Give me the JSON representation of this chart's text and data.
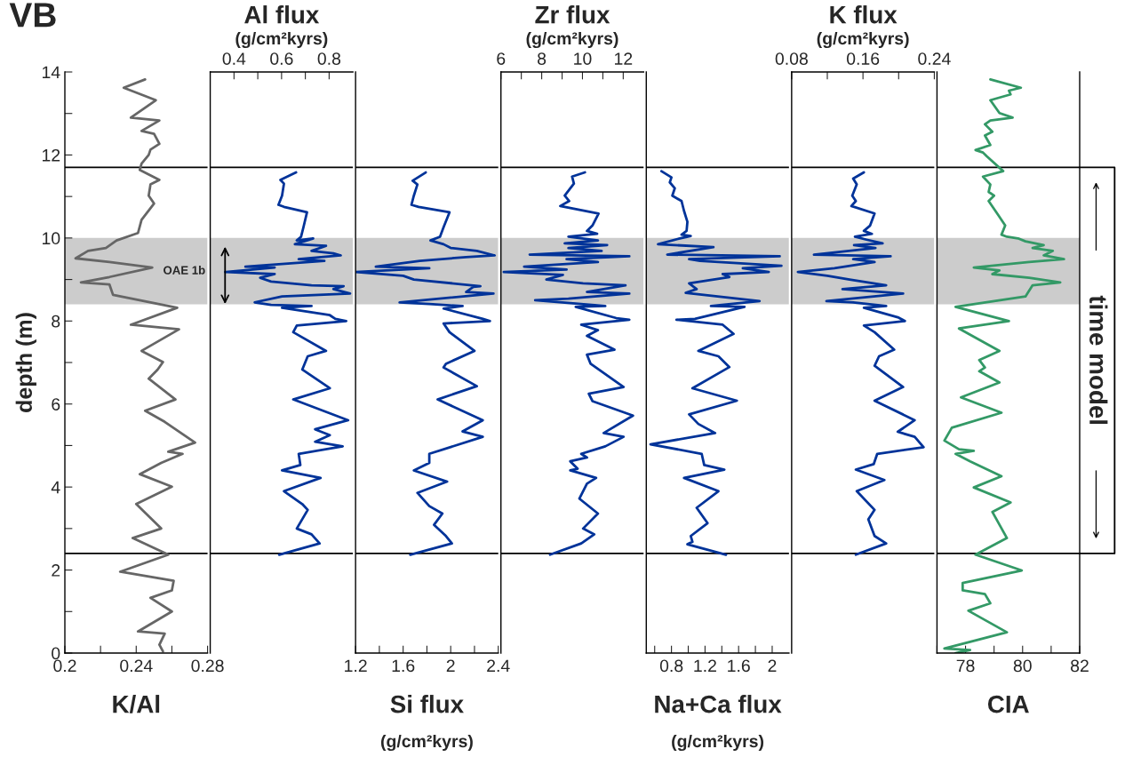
{
  "chart_data": [
    {
      "type": "line",
      "title": "VB",
      "xlabel": "K/Al",
      "ylabel": "depth (m)",
      "color": "#666666",
      "xlim": [
        0.2,
        0.28
      ],
      "xticks": [
        0.2,
        {
          "value": 0.22,
          "label": null
        },
        0.24,
        {
          "value": 0.26,
          "label": null
        },
        0.28
      ],
      "ylim": [
        0,
        14
      ],
      "yticks": [
        0,
        {
          "value": 1,
          "label": null
        },
        2,
        {
          "value": 3,
          "label": null
        },
        4,
        {
          "value": 5,
          "label": null
        },
        6,
        {
          "value": 7,
          "label": null
        },
        8,
        {
          "value": 9,
          "label": null
        },
        10,
        {
          "value": 11,
          "label": null
        },
        12,
        {
          "value": 13,
          "label": null
        },
        14
      ],
      "x": [
        0.245,
        0.233,
        0.251,
        0.237,
        0.253,
        0.243,
        0.25,
        0.253,
        0.248,
        0.247,
        0.243,
        0.242,
        0.253,
        0.248,
        0.247,
        0.25,
        0.243,
        0.241,
        0.229,
        0.223,
        0.213,
        0.206,
        0.225,
        0.249,
        0.225,
        0.209,
        0.225,
        0.227,
        0.263,
        0.237,
        0.264,
        0.243,
        0.255,
        0.252,
        0.247,
        0.262,
        0.245,
        0.256,
        0.273,
        0.258,
        0.266,
        0.254,
        0.242,
        0.26,
        0.24,
        0.254,
        0.238,
        0.258,
        0.231,
        0.261,
        0.26,
        0.248,
        0.26,
        0.241,
        0.256,
        0.253,
        0.255
      ],
      "values": [
        13.82,
        13.62,
        13.32,
        12.9,
        12.83,
        12.58,
        12.51,
        12.27,
        12.13,
        12.0,
        11.79,
        11.64,
        11.4,
        11.29,
        11.02,
        10.83,
        10.44,
        10.12,
        9.94,
        9.76,
        9.69,
        9.51,
        9.42,
        9.29,
        9.06,
        8.93,
        8.88,
        8.63,
        8.32,
        7.91,
        7.8,
        7.28,
        7.01,
        6.83,
        6.61,
        6.11,
        5.84,
        5.57,
        5.07,
        4.85,
        4.8,
        4.58,
        4.31,
        4.01,
        3.59,
        3.0,
        2.77,
        2.37,
        1.96,
        1.74,
        1.51,
        1.33,
        1.0,
        0.52,
        0.47,
        0.2,
        0.04
      ],
      "bands": [
        {
          "axis": "y",
          "from": 8.4,
          "to": 10.0,
          "label": "OAE 1b",
          "color": "#cccccc"
        }
      ],
      "ref_lines": [
        {
          "axis": "y",
          "value": 2.4,
          "color": "#000000"
        },
        {
          "axis": "y",
          "value": 11.7,
          "color": "#000000"
        }
      ]
    },
    {
      "type": "line",
      "xlabel": "Al flux",
      "annotations": [
        "(g/cm²kyrs)"
      ],
      "color": "#003399",
      "tick_labels": "x",
      "xlim": [
        0.3,
        0.9
      ],
      "xticks": [
        0.4,
        {
          "value": 0.5,
          "label": null
        },
        0.6,
        {
          "value": 0.7,
          "label": null
        },
        0.8
      ],
      "ylim": [
        0,
        14
      ],
      "x": [
        0.661,
        0.595,
        0.61,
        0.602,
        0.587,
        0.61,
        0.707,
        0.692,
        0.682,
        0.664,
        0.733,
        0.656,
        0.787,
        0.726,
        0.818,
        0.849,
        0.672,
        0.78,
        0.448,
        0.571,
        0.363,
        0.571,
        0.51,
        0.556,
        0.726,
        0.861,
        0.818,
        0.888,
        0.602,
        0.487,
        0.556,
        0.726,
        0.602,
        0.803,
        0.826,
        0.872,
        0.664,
        0.649,
        0.787,
        0.71,
        0.687,
        0.803,
        0.649,
        0.88,
        0.741,
        0.803,
        0.741,
        0.857,
        0.672,
        0.679,
        0.602,
        0.764,
        0.61,
        0.687,
        0.71,
        0.664,
        0.726,
        0.76,
        0.59
      ],
      "values": [
        11.58,
        11.4,
        11.31,
        11.02,
        10.8,
        10.75,
        10.62,
        10.26,
        10.03,
        9.94,
        9.99,
        9.85,
        9.81,
        9.69,
        9.63,
        9.58,
        9.49,
        9.45,
        9.31,
        9.29,
        9.18,
        9.13,
        9.04,
        8.95,
        8.86,
        8.84,
        8.77,
        8.66,
        8.59,
        8.45,
        8.39,
        8.36,
        8.32,
        8.14,
        8.05,
        8.0,
        7.89,
        7.73,
        7.28,
        7.15,
        6.83,
        6.38,
        6.11,
        5.61,
        5.39,
        5.25,
        5.09,
        4.98,
        4.8,
        4.53,
        4.4,
        4.22,
        3.9,
        3.59,
        3.45,
        3.0,
        2.86,
        2.64,
        2.37
      ],
      "bands": [
        {
          "axis": "y",
          "from": 8.4,
          "to": 10.0,
          "color": "#cccccc"
        }
      ],
      "ref_lines": [
        {
          "axis": "y",
          "value": 2.4,
          "color": "#000000"
        },
        {
          "axis": "y",
          "value": 11.7,
          "color": "#000000"
        }
      ]
    },
    {
      "type": "line",
      "xlabel": "Si flux",
      "annotations": [
        "(g/cm²kyrs)"
      ],
      "color": "#003399",
      "tick_labels": "x",
      "xlim": [
        1.2,
        2.4
      ],
      "xticks": [
        1.2,
        {
          "value": 1.4,
          "label": null
        },
        1.6,
        {
          "value": 1.8,
          "label": null
        },
        2,
        {
          "value": 2.2,
          "label": null
        },
        2.4
      ],
      "ylim": [
        0,
        14
      ],
      "x": [
        1.79,
        1.68,
        1.72,
        1.69,
        1.67,
        1.73,
        1.99,
        1.94,
        1.91,
        1.83,
        1.94,
        2.0,
        2.22,
        2.37,
        2.13,
        1.74,
        1.37,
        1.82,
        1.2,
        1.6,
        1.69,
        2.25,
        2.19,
        2.13,
        2.36,
        1.57,
        1.82,
        2.1,
        1.94,
        2.27,
        2.33,
        1.94,
        1.99,
        2.2,
        1.96,
        1.94,
        2.22,
        1.89,
        2.27,
        2.1,
        2.27,
        1.82,
        1.82,
        1.69,
        1.97,
        1.72,
        1.82,
        1.93,
        1.86,
        1.96,
        2.01,
        1.66
      ],
      "values": [
        11.58,
        11.38,
        11.29,
        11.02,
        10.8,
        10.75,
        10.62,
        10.26,
        10.03,
        9.94,
        9.85,
        9.76,
        9.69,
        9.58,
        9.54,
        9.45,
        9.31,
        9.27,
        9.18,
        9.09,
        9.0,
        8.84,
        8.82,
        8.7,
        8.66,
        8.45,
        8.41,
        8.36,
        8.3,
        8.05,
        8.0,
        7.94,
        7.73,
        7.28,
        6.97,
        6.88,
        6.43,
        6.11,
        5.61,
        5.34,
        5.21,
        4.8,
        4.58,
        4.4,
        4.13,
        3.86,
        3.54,
        3.36,
        3.09,
        2.82,
        2.64,
        2.37
      ],
      "bands": [
        {
          "axis": "y",
          "from": 8.4,
          "to": 10.0,
          "color": "#cccccc"
        }
      ],
      "ref_lines": [
        {
          "axis": "y",
          "value": 2.4,
          "color": "#000000"
        },
        {
          "axis": "y",
          "value": 11.7,
          "color": "#000000"
        }
      ]
    },
    {
      "type": "line",
      "xlabel": "Zr flux",
      "annotations": [
        "(g/cm²kyrs)"
      ],
      "color": "#003399",
      "tick_labels": "x",
      "xlim": [
        6,
        13
      ],
      "xticks": [
        6,
        {
          "value": 7,
          "label": null
        },
        8,
        {
          "value": 9,
          "label": null
        },
        10,
        {
          "value": 11,
          "label": null
        },
        12
      ],
      "ylim": [
        0,
        14
      ],
      "x": [
        10.12,
        9.49,
        9.58,
        9.13,
        9.35,
        8.91,
        10.79,
        10.49,
        10.22,
        10.72,
        9.31,
        10.76,
        9.13,
        11.21,
        9.31,
        10.94,
        7.41,
        12.3,
        9.22,
        10.76,
        7.14,
        9.22,
        6.14,
        9.04,
        8.23,
        10.03,
        12.11,
        10.22,
        12.3,
        9.31,
        7.68,
        11.12,
        9.67,
        11.66,
        12.3,
        9.94,
        10.76,
        10.22,
        11.57,
        10.22,
        10.4,
        12.02,
        10.31,
        10.49,
        12.48,
        11.04,
        12.02,
        11.12,
        9.94,
        10.22,
        9.4,
        9.76,
        9.4,
        10.67,
        10.22,
        9.85,
        10.76,
        10.03,
        10.58,
        9.94,
        8.41
      ],
      "values": [
        11.58,
        11.48,
        11.31,
        11.02,
        10.89,
        10.77,
        10.59,
        10.3,
        10.17,
        10.1,
        10.03,
        9.94,
        9.87,
        9.83,
        9.76,
        9.69,
        9.6,
        9.56,
        9.49,
        9.42,
        9.31,
        9.24,
        9.18,
        9.11,
        9.0,
        8.91,
        8.86,
        8.7,
        8.66,
        8.54,
        8.5,
        8.36,
        8.34,
        8.07,
        8.03,
        7.91,
        7.78,
        7.64,
        7.31,
        7.19,
        6.97,
        6.41,
        6.25,
        6.07,
        5.72,
        5.3,
        5.21,
        4.98,
        4.8,
        4.71,
        4.62,
        4.44,
        4.4,
        4.22,
        4.08,
        3.72,
        3.36,
        3.0,
        2.86,
        2.64,
        2.37
      ],
      "bands": [
        {
          "axis": "y",
          "from": 8.4,
          "to": 10.0,
          "color": "#cccccc"
        }
      ],
      "ref_lines": [
        {
          "axis": "y",
          "value": 2.4,
          "color": "#000000"
        },
        {
          "axis": "y",
          "value": 11.7,
          "color": "#000000"
        }
      ]
    },
    {
      "type": "line",
      "xlabel": "Na+Ca flux",
      "annotations": [
        "(g/cm²kyrs)"
      ],
      "color": "#003399",
      "tick_labels": "x",
      "xlim": [
        0.5,
        2.2
      ],
      "xticks": [
        {
          "value": 0.6,
          "label": null
        },
        0.8,
        {
          "value": 1.0,
          "label": null
        },
        1.2,
        {
          "value": 1.4,
          "label": null
        },
        1.6,
        {
          "value": 1.8,
          "label": null
        },
        2
      ],
      "ylim": [
        0,
        14
      ],
      "x": [
        0.68,
        0.8,
        0.78,
        0.84,
        0.81,
        0.92,
        0.95,
        0.99,
        0.98,
        0.92,
        1.03,
        0.9,
        0.64,
        1.3,
        0.75,
        2.09,
        1.01,
        1.14,
        2.11,
        1.65,
        1.96,
        1.41,
        1.49,
        1.01,
        1.1,
        0.97,
        1.85,
        1.27,
        1.67,
        1.08,
        0.86,
        1.41,
        1.54,
        1.12,
        1.36,
        1.49,
        1.05,
        1.58,
        1.01,
        1.12,
        1.32,
        0.55,
        1.16,
        1.19,
        1.43,
        0.95,
        1.36,
        1.1,
        1.23,
        1.03,
        1.05,
        0.99,
        1.45
      ],
      "values": [
        11.61,
        11.46,
        11.34,
        11.2,
        11.02,
        10.89,
        10.65,
        10.39,
        10.17,
        10.08,
        10.05,
        9.99,
        9.85,
        9.78,
        9.6,
        9.56,
        9.49,
        9.45,
        9.33,
        9.27,
        9.18,
        9.13,
        9.06,
        8.91,
        8.77,
        8.68,
        8.48,
        8.36,
        8.34,
        8.05,
        8.03,
        7.91,
        7.69,
        7.28,
        7.15,
        6.89,
        6.38,
        6.08,
        5.75,
        5.52,
        5.3,
        5.03,
        4.8,
        4.53,
        4.42,
        4.22,
        3.9,
        3.5,
        3.13,
        2.82,
        2.68,
        2.62,
        2.37
      ],
      "bands": [
        {
          "axis": "y",
          "from": 8.4,
          "to": 10.0,
          "color": "#cccccc"
        }
      ],
      "ref_lines": [
        {
          "axis": "y",
          "value": 2.4,
          "color": "#000000"
        },
        {
          "axis": "y",
          "value": 11.7,
          "color": "#000000"
        }
      ]
    },
    {
      "type": "line",
      "xlabel": "K flux",
      "annotations": [
        "(g/cm²kyrs)"
      ],
      "color": "#003399",
      "tick_labels": "x",
      "xlim": [
        0.08,
        0.24
      ],
      "xticks": [
        0.08,
        {
          "value": 0.12,
          "label": null
        },
        0.16,
        {
          "value": 0.2,
          "label": null
        },
        0.24
      ],
      "ylim": [
        0,
        14
      ],
      "x": [
        0.161,
        0.149,
        0.153,
        0.148,
        0.152,
        0.147,
        0.173,
        0.168,
        0.161,
        0.17,
        0.151,
        0.164,
        0.182,
        0.15,
        0.174,
        0.105,
        0.191,
        0.149,
        0.173,
        0.128,
        0.087,
        0.12,
        0.145,
        0.186,
        0.137,
        0.205,
        0.119,
        0.149,
        0.186,
        0.161,
        0.199,
        0.207,
        0.161,
        0.173,
        0.195,
        0.178,
        0.173,
        0.205,
        0.173,
        0.218,
        0.199,
        0.218,
        0.228,
        0.176,
        0.172,
        0.152,
        0.184,
        0.153,
        0.173,
        0.166,
        0.173,
        0.186,
        0.152
      ],
      "values": [
        11.58,
        11.43,
        11.29,
        11.02,
        10.89,
        10.77,
        10.59,
        10.3,
        10.17,
        10.1,
        10.03,
        9.96,
        9.87,
        9.83,
        9.76,
        9.6,
        9.56,
        9.49,
        9.42,
        9.27,
        9.18,
        9.09,
        9.0,
        8.86,
        8.77,
        8.66,
        8.48,
        8.45,
        8.36,
        8.32,
        8.09,
        8.0,
        7.89,
        7.73,
        7.31,
        7.15,
        6.92,
        6.41,
        6.08,
        5.61,
        5.33,
        5.21,
        4.96,
        4.8,
        4.55,
        4.42,
        4.17,
        3.9,
        3.45,
        3.22,
        2.82,
        2.64,
        2.37
      ],
      "bands": [
        {
          "axis": "y",
          "from": 8.4,
          "to": 10.0,
          "color": "#cccccc"
        }
      ],
      "ref_lines": [
        {
          "axis": "y",
          "value": 2.4,
          "color": "#000000"
        },
        {
          "axis": "y",
          "value": 11.7,
          "color": "#000000"
        }
      ]
    },
    {
      "type": "line",
      "xlabel": "CIA",
      "annotations": [
        "time model"
      ],
      "color": "#339966",
      "tick_labels": "x",
      "xlim": [
        77,
        82
      ],
      "xticks": [
        {
          "value": 77,
          "label": null
        },
        78,
        {
          "value": 79,
          "label": null
        },
        80,
        {
          "value": 81,
          "label": null
        },
        82
      ],
      "ylim": [
        0,
        14
      ],
      "x": [
        78.87,
        79.94,
        79.52,
        79.58,
        78.87,
        79.19,
        79.65,
        78.87,
        78.68,
        78.94,
        78.68,
        78.87,
        78.35,
        78.61,
        78.74,
        79.32,
        78.61,
        78.87,
        78.81,
        79.0,
        78.81,
        79.13,
        79.39,
        79.26,
        79.45,
        79.84,
        80.1,
        80.74,
        80.35,
        81.06,
        80.74,
        81.45,
        80.23,
        78.29,
        79.19,
        78.94,
        80.23,
        81.32,
        80.35,
        80.1,
        77.65,
        79.52,
        77.77,
        79.19,
        78.48,
        78.68,
        78.48,
        79.19,
        77.84,
        79.26,
        77.52,
        77.26,
        77.77,
        78.29,
        77.65,
        78.16,
        79.26,
        78.29,
        79.58,
        78.94,
        79.45,
        78.35,
        79.97,
        77.9,
        77.9,
        78.68,
        78.87,
        78.1,
        79.45,
        77.26,
        78.16,
        77.65
      ],
      "values": [
        13.82,
        13.62,
        13.55,
        13.46,
        13.32,
        13.01,
        12.9,
        12.83,
        12.74,
        12.56,
        12.47,
        12.24,
        12.12,
        12.06,
        11.97,
        11.61,
        11.48,
        11.29,
        11.11,
        11.02,
        10.89,
        10.57,
        10.3,
        10.08,
        10.03,
        9.99,
        9.92,
        9.83,
        9.76,
        9.69,
        9.58,
        9.49,
        9.42,
        9.29,
        9.22,
        9.13,
        9.04,
        8.93,
        8.86,
        8.59,
        8.34,
        8.0,
        7.82,
        7.28,
        7.06,
        6.88,
        6.79,
        6.52,
        6.16,
        5.79,
        5.43,
        5.12,
        4.91,
        4.87,
        4.8,
        4.62,
        4.26,
        3.99,
        3.63,
        3.4,
        2.77,
        2.37,
        1.99,
        1.69,
        1.51,
        1.42,
        1.2,
        1.02,
        0.5,
        0.11,
        0.07,
        0.0
      ],
      "bands": [
        {
          "axis": "y",
          "from": 8.4,
          "to": 10.0,
          "color": "#cccccc"
        }
      ],
      "ref_lines": [
        {
          "axis": "y",
          "value": 2.4,
          "color": "#000000"
        },
        {
          "axis": "y",
          "value": 11.7,
          "color": "#000000"
        }
      ]
    }
  ]
}
